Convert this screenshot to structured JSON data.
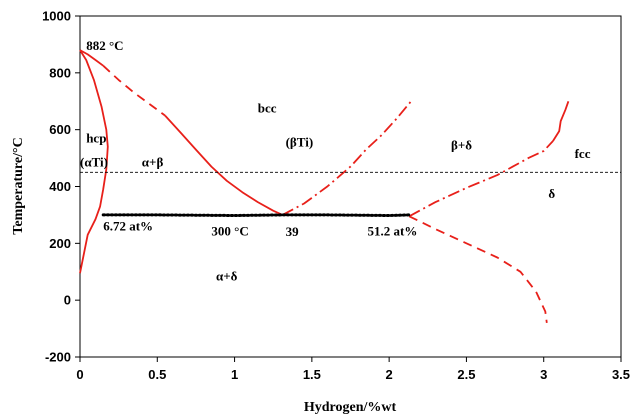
{
  "chart_data": {
    "type": "line",
    "xlabel": "Hydrogen/%wt",
    "ylabel": "Temperature/°C",
    "xlim": [
      0,
      3.5
    ],
    "ylim": [
      -200,
      1000
    ],
    "x_ticks": [
      "0",
      "0.5",
      "1",
      "1.5",
      "2",
      "2.5",
      "3",
      "3.5"
    ],
    "x_tick_values": [
      0,
      0.5,
      1,
      1.5,
      2,
      2.5,
      3,
      3.5
    ],
    "y_ticks": [
      "-200",
      "0",
      "200",
      "400",
      "600",
      "800",
      "1000"
    ],
    "y_tick_values": [
      -200,
      0,
      200,
      400,
      600,
      800,
      1000
    ],
    "grid": false,
    "legend": "none",
    "series": [
      {
        "style": "solid",
        "color": "#e8201a",
        "x": [
          0.0,
          0.04,
          0.09,
          0.14,
          0.17,
          0.18,
          0.17,
          0.15,
          0.13,
          0.1,
          0.05,
          0.0
        ],
        "y": [
          880,
          845,
          775,
          680,
          600,
          540,
          460,
          390,
          330,
          285,
          230,
          95
        ]
      },
      {
        "style": "solid",
        "color": "#e8201a",
        "x": [
          0.0,
          0.05,
          0.1,
          0.15
        ],
        "y": [
          880,
          865,
          845,
          825
        ]
      },
      {
        "style": "dash",
        "color": "#e8201a",
        "x": [
          0.15,
          0.25,
          0.35,
          0.45,
          0.55
        ],
        "y": [
          825,
          775,
          730,
          690,
          650
        ]
      },
      {
        "style": "solid",
        "color": "#e8201a",
        "x": [
          0.55,
          0.65,
          0.75,
          0.85,
          0.95,
          1.05,
          1.15,
          1.25,
          1.31
        ],
        "y": [
          650,
          590,
          530,
          470,
          420,
          380,
          345,
          315,
          300
        ]
      },
      {
        "style": "dashdot",
        "color": "#e8201a",
        "x": [
          1.31,
          1.45,
          1.6,
          1.75,
          1.85,
          1.95,
          2.05,
          2.15
        ],
        "y": [
          300,
          340,
          400,
          470,
          530,
          580,
          640,
          705
        ]
      },
      {
        "style": "dashdot",
        "color": "#e8201a",
        "x": [
          2.13,
          2.3,
          2.5,
          2.7,
          2.8,
          2.9,
          3.0,
          3.06
        ],
        "y": [
          295,
          345,
          395,
          440,
          470,
          500,
          525,
          560
        ]
      },
      {
        "style": "solid",
        "color": "#e8201a",
        "x": [
          3.06,
          3.1,
          3.11,
          3.14,
          3.16
        ],
        "y": [
          560,
          595,
          630,
          670,
          700
        ]
      },
      {
        "style": "dash",
        "color": "#e8201a",
        "x": [
          2.13,
          2.3,
          2.5,
          2.7,
          2.85,
          2.95,
          3.01,
          3.02
        ],
        "y": [
          295,
          250,
          200,
          150,
          100,
          30,
          -40,
          -80
        ]
      },
      {
        "style": "dot",
        "color": "#000000",
        "x": [
          0.15,
          0.5,
          1.0,
          1.31,
          1.6,
          2.0,
          2.13
        ],
        "y": [
          300,
          300,
          298,
          300,
          300,
          298,
          300
        ]
      },
      {
        "style": "thin-dash",
        "color": "#000000",
        "x": [
          0.0,
          3.5
        ],
        "y": [
          450,
          450
        ]
      }
    ],
    "annotations": [
      {
        "text": "882 °C",
        "x": 0.04,
        "y": 880
      },
      {
        "text": "bcc",
        "x": 1.15,
        "y": 660
      },
      {
        "text": "hcp",
        "x": 0.04,
        "y": 555
      },
      {
        "text": "(αTi)",
        "x": 0.0,
        "y": 470
      },
      {
        "text": "α+β",
        "x": 0.4,
        "y": 470
      },
      {
        "text": "(βTi)",
        "x": 1.33,
        "y": 540
      },
      {
        "text": "β+δ",
        "x": 2.4,
        "y": 530
      },
      {
        "text": "fcc",
        "x": 3.2,
        "y": 500
      },
      {
        "text": "δ",
        "x": 3.03,
        "y": 360
      },
      {
        "text": "6.72 at%",
        "x": 0.15,
        "y": 245
      },
      {
        "text": "300 °C",
        "x": 0.85,
        "y": 228
      },
      {
        "text": "39",
        "x": 1.33,
        "y": 225
      },
      {
        "text": "51.2 at%",
        "x": 1.86,
        "y": 228
      },
      {
        "text": "α+δ",
        "x": 0.88,
        "y": 70
      }
    ]
  }
}
